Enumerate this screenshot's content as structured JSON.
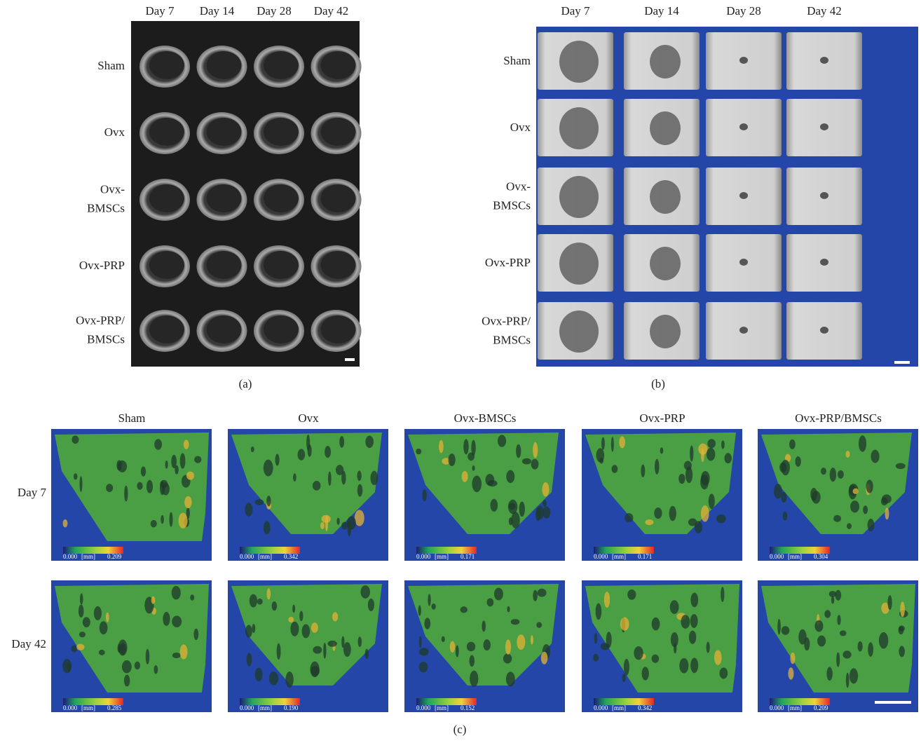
{
  "panel_a": {
    "columns": [
      "Day 7",
      "Day 14",
      "Day 28",
      "Day 42"
    ],
    "rows": [
      [
        "Sham"
      ],
      [
        "Ovx"
      ],
      [
        "Ovx-",
        "BMSCs"
      ],
      [
        "Ovx-PRP"
      ],
      [
        "Ovx-PRP/",
        "BMSCs"
      ]
    ],
    "label": "(a)"
  },
  "panel_b": {
    "columns": [
      "Day 7",
      "Day 14",
      "Day 28",
      "Day 42"
    ],
    "rows": [
      [
        "Sham"
      ],
      [
        "Ovx"
      ],
      [
        "Ovx-",
        "BMSCs"
      ],
      [
        "Ovx-PRP"
      ],
      [
        "Ovx-PRP/",
        "BMSCs"
      ]
    ],
    "label": "(b)"
  },
  "panel_c": {
    "columns": [
      "Sham",
      "Ovx",
      "Ovx-BMSCs",
      "Ovx-PRP",
      "Ovx-PRP/BMSCs"
    ],
    "rows": [
      "Day 7",
      "Day 42"
    ],
    "colorbars": [
      [
        {
          "min": "0.000",
          "unit": "[mm]",
          "max": "0.209"
        },
        {
          "min": "0.000",
          "unit": "[mm]",
          "max": "0.342"
        },
        {
          "min": "0.000",
          "unit": "[mm]",
          "max": "0.171"
        },
        {
          "min": "0.000",
          "unit": "[mm]",
          "max": "0.171"
        },
        {
          "min": "0.000",
          "unit": "[mm]",
          "max": "0.304"
        }
      ],
      [
        {
          "min": "0.000",
          "unit": "[mm]",
          "max": "0.285"
        },
        {
          "min": "0.000",
          "unit": "[mm]",
          "max": "0.190"
        },
        {
          "min": "0.000",
          "unit": "[mm]",
          "max": "0.152"
        },
        {
          "min": "0.000",
          "unit": "[mm]",
          "max": "0.342"
        },
        {
          "min": "0.000",
          "unit": "[mm]",
          "max": "0.209"
        }
      ]
    ],
    "label": "(c)"
  }
}
